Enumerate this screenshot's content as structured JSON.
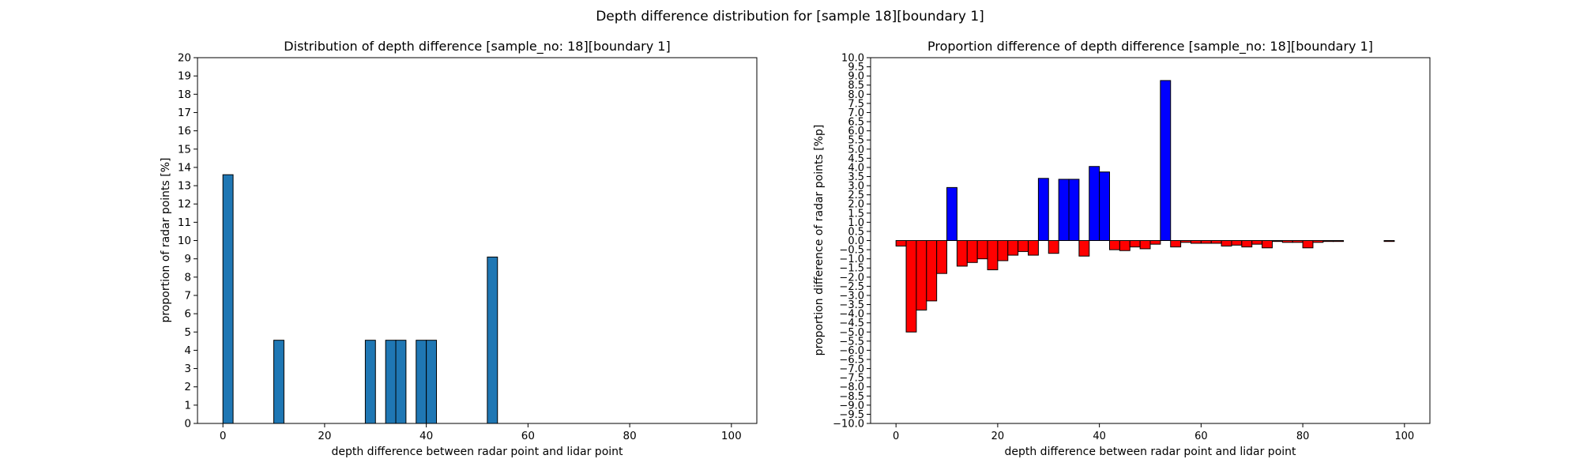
{
  "figure": {
    "suptitle": "Depth difference distribution for [sample 18][boundary 1]"
  },
  "chart_data": [
    {
      "type": "bar",
      "title": "Distribution of depth difference [sample_no: 18][boundary 1]",
      "xlabel": "depth difference between radar point and lidar point",
      "ylabel": "proportion of radar points [%]",
      "xlim": [
        -5,
        105
      ],
      "ylim": [
        0,
        20
      ],
      "xticks": [
        0,
        20,
        40,
        60,
        80,
        100
      ],
      "xtick_labels": [
        "0",
        "20",
        "40",
        "60",
        "80",
        "100"
      ],
      "yticks": [
        0,
        1,
        2,
        3,
        4,
        5,
        6,
        7,
        8,
        9,
        10,
        11,
        12,
        13,
        14,
        15,
        16,
        17,
        18,
        19,
        20
      ],
      "ytick_labels": [
        "0",
        "1",
        "2",
        "3",
        "4",
        "5",
        "6",
        "7",
        "8",
        "9",
        "10",
        "11",
        "12",
        "13",
        "14",
        "15",
        "16",
        "17",
        "18",
        "19",
        "20"
      ],
      "bar_width": 2,
      "bar_color": "#1f77b4",
      "edge_color": "#000000",
      "grid": false,
      "x": [
        1,
        11,
        29,
        33,
        35,
        39,
        41,
        53
      ],
      "values": [
        13.6,
        4.55,
        4.55,
        4.55,
        4.55,
        4.55,
        4.55,
        9.1
      ]
    },
    {
      "type": "bar",
      "title": "Proportion difference of depth difference [sample_no: 18][boundary 1]",
      "xlabel": "depth difference between radar point and lidar point",
      "ylabel": "proportion difference of radar points [%p]",
      "xlim": [
        -5,
        105
      ],
      "ylim": [
        -10,
        10
      ],
      "xticks": [
        0,
        20,
        40,
        60,
        80,
        100
      ],
      "xtick_labels": [
        "0",
        "20",
        "40",
        "60",
        "80",
        "100"
      ],
      "yticks": [
        -10,
        -9.5,
        -9,
        -8.5,
        -8,
        -7.5,
        -7,
        -6.5,
        -6,
        -5.5,
        -5,
        -4.5,
        -4,
        -3.5,
        -3,
        -2.5,
        -2,
        -1.5,
        -1,
        -0.5,
        0,
        0.5,
        1,
        1.5,
        2,
        2.5,
        3,
        3.5,
        4,
        4.5,
        5,
        5.5,
        6,
        6.5,
        7,
        7.5,
        8,
        8.5,
        9,
        9.5,
        10
      ],
      "ytick_labels": [
        "−10.0",
        "−9.5",
        "−9.0",
        "−8.5",
        "−8.0",
        "−7.5",
        "−7.0",
        "−6.5",
        "−6.0",
        "−5.5",
        "−5.0",
        "−4.5",
        "−4.0",
        "−3.5",
        "−3.0",
        "−2.5",
        "−2.0",
        "−1.5",
        "−1.0",
        "−0.5",
        "0.0",
        "0.5",
        "1.0",
        "1.5",
        "2.0",
        "2.5",
        "3.0",
        "3.5",
        "4.0",
        "4.5",
        "5.0",
        "5.5",
        "6.0",
        "6.5",
        "7.0",
        "7.5",
        "8.0",
        "8.5",
        "9.0",
        "9.5",
        "10.0"
      ],
      "bar_width": 2,
      "positive_color": "#0000ff",
      "negative_color": "#ff0000",
      "edge_color": "#000000",
      "grid": false,
      "x": [
        1,
        3,
        5,
        7,
        9,
        11,
        13,
        15,
        17,
        19,
        21,
        23,
        25,
        27,
        29,
        31,
        33,
        35,
        37,
        39,
        41,
        43,
        45,
        47,
        49,
        51,
        53,
        55,
        57,
        59,
        61,
        63,
        65,
        67,
        69,
        71,
        73,
        75,
        77,
        79,
        81,
        83,
        85,
        87,
        89,
        91,
        93,
        95,
        97,
        99
      ],
      "values": [
        -0.3,
        -5.0,
        -3.8,
        -3.3,
        -1.8,
        2.9,
        -1.4,
        -1.2,
        -1.0,
        -1.6,
        -1.1,
        -0.8,
        -0.6,
        -0.8,
        3.4,
        -0.7,
        3.35,
        3.35,
        -0.85,
        4.05,
        3.75,
        -0.5,
        -0.55,
        -0.35,
        -0.45,
        -0.2,
        8.75,
        -0.35,
        -0.1,
        -0.15,
        -0.15,
        -0.15,
        -0.3,
        -0.25,
        -0.35,
        -0.2,
        -0.4,
        -0.05,
        -0.1,
        -0.1,
        -0.4,
        -0.1,
        -0.05,
        -0.05,
        0,
        0,
        0,
        0,
        -0.05,
        0
      ]
    }
  ]
}
